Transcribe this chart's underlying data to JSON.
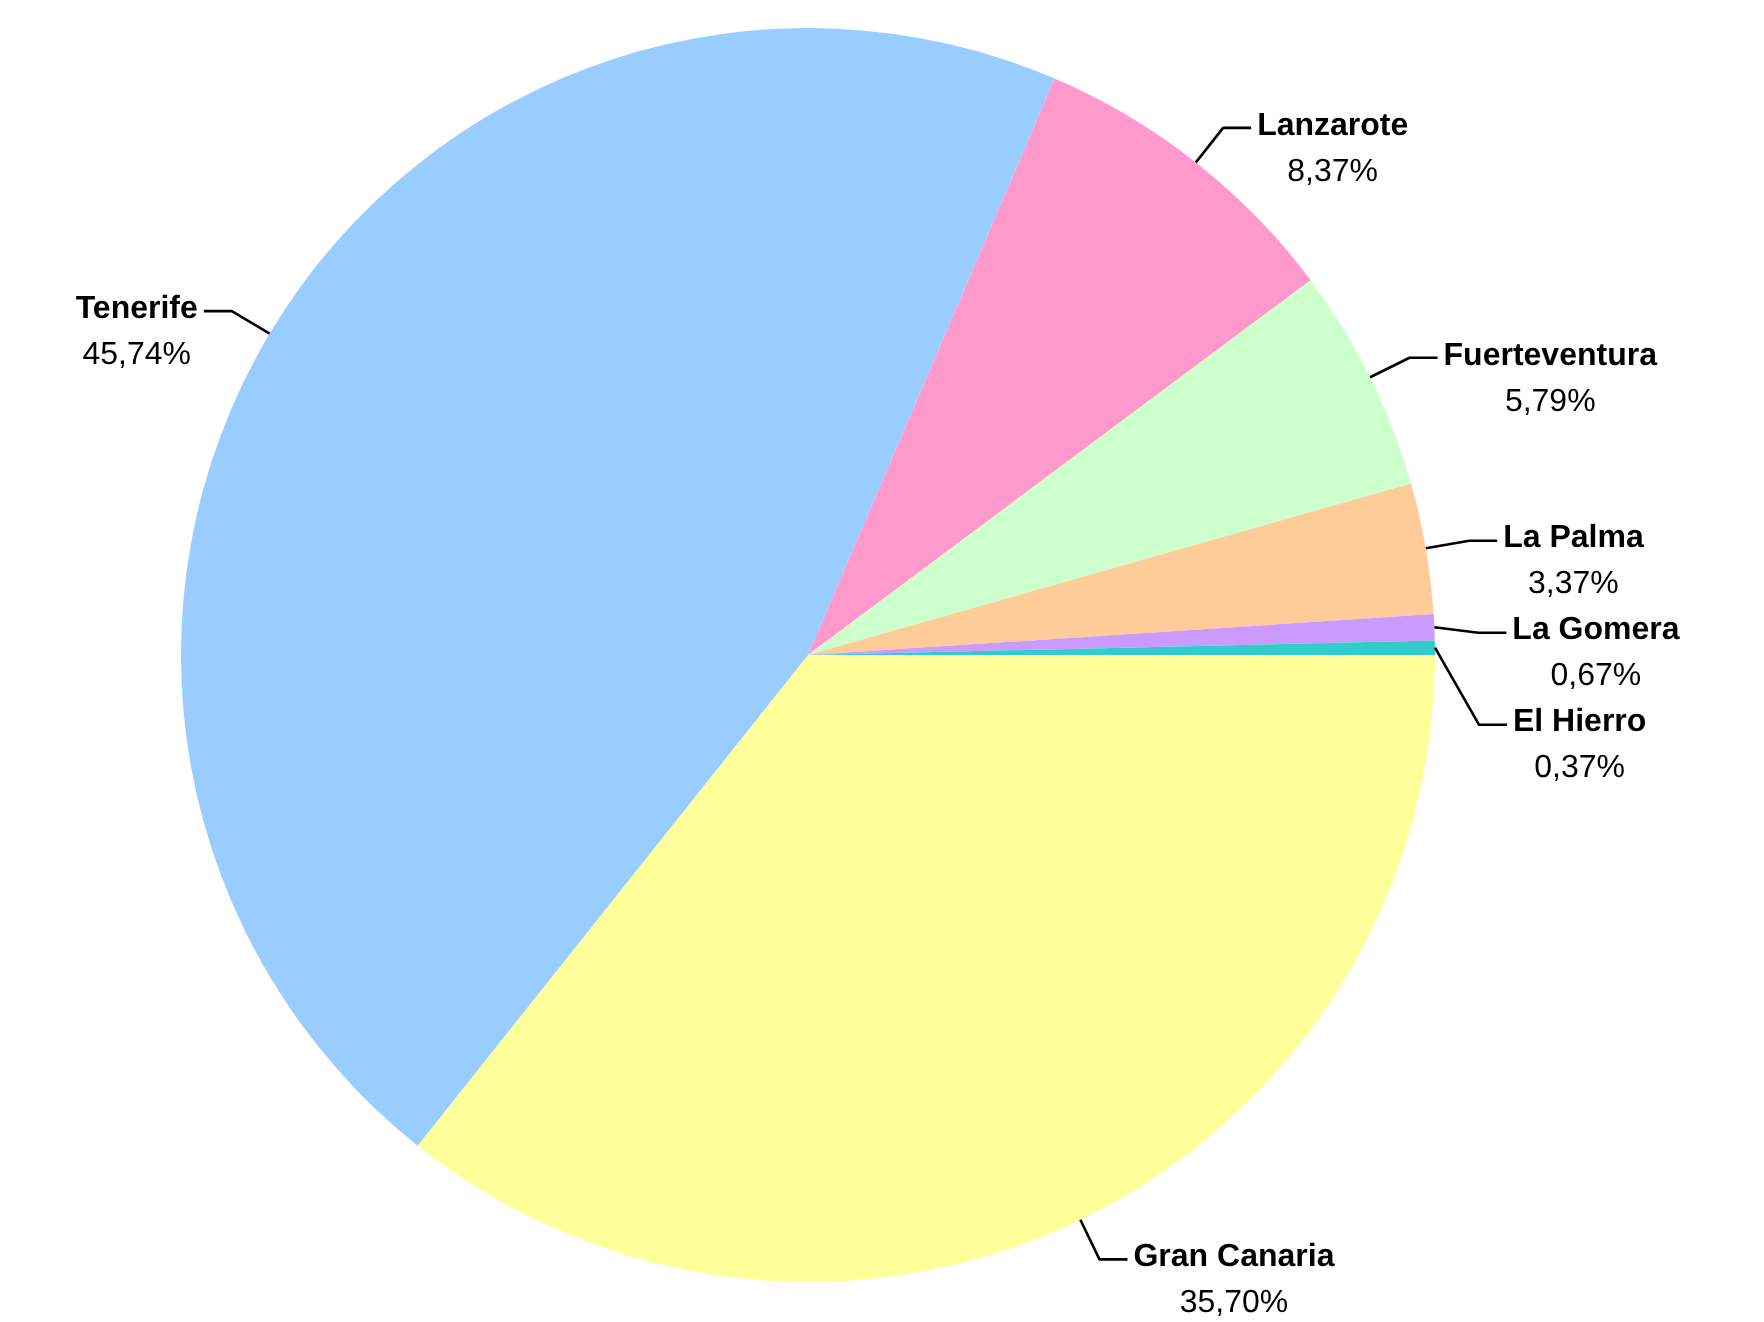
{
  "chart_data": {
    "type": "pie",
    "categories": [
      "Gran Canaria",
      "Tenerife",
      "Lanzarote",
      "Fuerteventura",
      "La Palma",
      "La Gomera",
      "El Hierro"
    ],
    "values": [
      35.7,
      45.74,
      8.37,
      5.79,
      3.37,
      0.67,
      0.37
    ],
    "value_labels": [
      "35,70%",
      "45,74%",
      "8,37%",
      "5,79%",
      "3,37%",
      "0,67%",
      "0,37%"
    ],
    "colors": [
      "#ffff99",
      "#99ccff",
      "#ff99cc",
      "#ccffcc",
      "#ffcc99",
      "#cc99ff",
      "#33cccc"
    ],
    "legend": false
  }
}
